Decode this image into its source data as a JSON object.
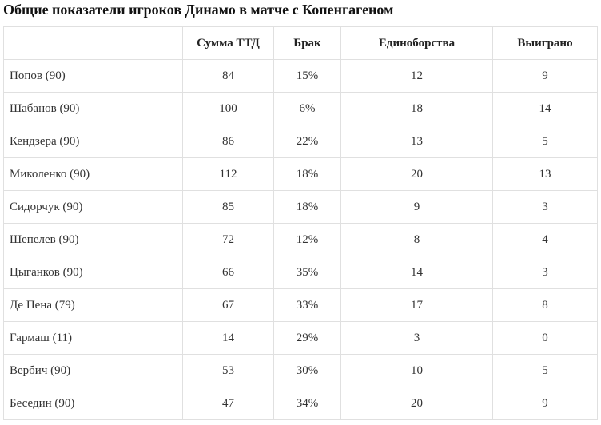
{
  "title": "Общие показатели игроков Динамо в матче с Копенгагеном",
  "table": {
    "headers": [
      "",
      "Сумма ТТД",
      "Брак",
      "Единоборства",
      "Выиграно"
    ],
    "rows": [
      [
        "Попов (90)",
        "84",
        "15%",
        "12",
        "9"
      ],
      [
        "Шабанов (90)",
        "100",
        "6%",
        "18",
        "14"
      ],
      [
        "Кендзера (90)",
        "86",
        "22%",
        "13",
        "5"
      ],
      [
        "Миколенко (90)",
        "112",
        "18%",
        "20",
        "13"
      ],
      [
        "Сидорчук (90)",
        "85",
        "18%",
        "9",
        "3"
      ],
      [
        "Шепелев (90)",
        "72",
        "12%",
        "8",
        "4"
      ],
      [
        "Цыганков (90)",
        "66",
        "35%",
        "14",
        "3"
      ],
      [
        "Де Пена (79)",
        "67",
        "33%",
        "17",
        "8"
      ],
      [
        "Гармаш (11)",
        "14",
        "29%",
        "3",
        "0"
      ],
      [
        "Вербич (90)",
        "53",
        "30%",
        "10",
        "5"
      ],
      [
        "Беседин (90)",
        "47",
        "34%",
        "20",
        "9"
      ]
    ]
  }
}
